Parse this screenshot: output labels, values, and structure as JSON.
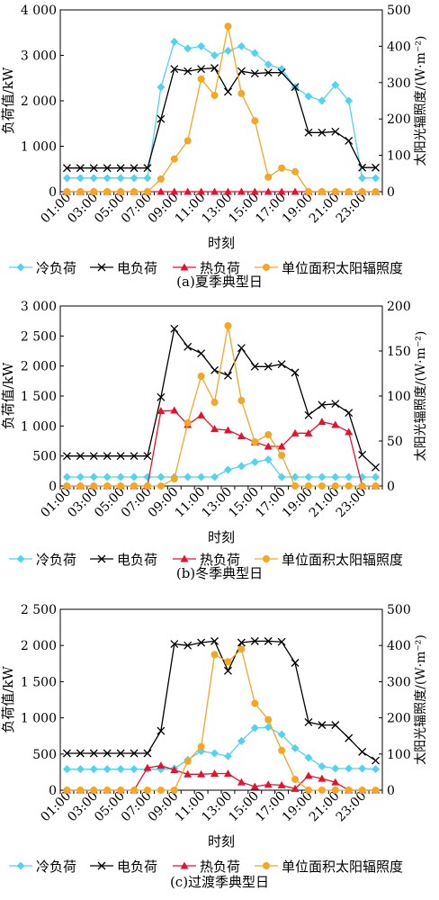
{
  "chart_data": [
    {
      "type": "line",
      "caption": "(a)夏季典型日",
      "xlabel": "时刻",
      "ylabel_left": "负荷值/kW",
      "ylabel_right": "太阳光辐照度/(W·m⁻²)",
      "x": [
        "01:00",
        "02:00",
        "03:00",
        "04:00",
        "05:00",
        "06:00",
        "07:00",
        "08:00",
        "09:00",
        "10:00",
        "11:00",
        "12:00",
        "13:00",
        "14:00",
        "15:00",
        "16:00",
        "17:00",
        "18:00",
        "19:00",
        "20:00",
        "21:00",
        "22:00",
        "23:00",
        "24:00"
      ],
      "xticks": [
        "01:00",
        "03:00",
        "05:00",
        "07:00",
        "09:00",
        "11:00",
        "13:00",
        "15:00",
        "17:00",
        "19:00",
        "21:00",
        "23:00"
      ],
      "ylim_left": [
        0,
        4000
      ],
      "yticks_left": [
        "0",
        "1 000",
        "2 000",
        "3 000",
        "4 000"
      ],
      "ylim_right": [
        0,
        500
      ],
      "yticks_right": [
        "0",
        "100",
        "200",
        "300",
        "400",
        "500"
      ],
      "series": [
        {
          "name": "冷负荷",
          "axis": "left",
          "color": "#4fd5f0",
          "marker": "diamond",
          "values": [
            300,
            300,
            300,
            300,
            300,
            300,
            300,
            2300,
            3300,
            3150,
            3200,
            3000,
            3100,
            3200,
            3050,
            2800,
            2700,
            2300,
            2100,
            2000,
            2350,
            2000,
            300,
            300
          ]
        },
        {
          "name": "电负荷",
          "axis": "left",
          "color": "#000000",
          "marker": "x",
          "values": [
            520,
            520,
            520,
            520,
            520,
            520,
            520,
            1600,
            2700,
            2650,
            2700,
            2720,
            2200,
            2650,
            2600,
            2620,
            2620,
            2300,
            1300,
            1300,
            1320,
            1120,
            530,
            530
          ]
        },
        {
          "name": "热负荷",
          "axis": "left",
          "color": "#e8112d",
          "marker": "triangle",
          "values": [
            0,
            0,
            0,
            0,
            0,
            0,
            0,
            0,
            0,
            0,
            0,
            0,
            0,
            0,
            0,
            0,
            0,
            0,
            0,
            0,
            0,
            0,
            0,
            0
          ]
        },
        {
          "name": "单位面积太阳辐照度",
          "axis": "right",
          "color": "#f5a623",
          "marker": "circle",
          "values": [
            0,
            0,
            0,
            0,
            0,
            0,
            0,
            35,
            90,
            140,
            310,
            265,
            455,
            270,
            195,
            40,
            65,
            55,
            0,
            0,
            0,
            0,
            0,
            0
          ]
        }
      ]
    },
    {
      "type": "line",
      "caption": "(b)冬季典型日",
      "xlabel": "时刻",
      "ylabel_left": "负荷值/kW",
      "ylabel_right": "太阳光辐照度/(W·m⁻²)",
      "x": [
        "01:00",
        "02:00",
        "03:00",
        "04:00",
        "05:00",
        "06:00",
        "07:00",
        "08:00",
        "09:00",
        "10:00",
        "11:00",
        "12:00",
        "13:00",
        "14:00",
        "15:00",
        "16:00",
        "17:00",
        "18:00",
        "19:00",
        "20:00",
        "21:00",
        "22:00",
        "23:00",
        "24:00"
      ],
      "xticks": [
        "01:00",
        "03:00",
        "05:00",
        "07:00",
        "09:00",
        "11:00",
        "13:00",
        "15:00",
        "17:00",
        "19:00",
        "21:00",
        "23:00"
      ],
      "ylim_left": [
        0,
        3000
      ],
      "yticks_left": [
        "0",
        "500",
        "1 000",
        "1 500",
        "2 000",
        "2 500",
        "3 000"
      ],
      "ylim_right": [
        0,
        200
      ],
      "yticks_right": [
        "0",
        "50",
        "100",
        "150",
        "200"
      ],
      "series": [
        {
          "name": "冷负荷",
          "axis": "left",
          "color": "#4fd5f0",
          "marker": "diamond",
          "values": [
            150,
            150,
            150,
            150,
            150,
            150,
            150,
            150,
            150,
            150,
            150,
            150,
            270,
            330,
            400,
            440,
            150,
            150,
            150,
            150,
            150,
            150,
            150,
            150
          ]
        },
        {
          "name": "电负荷",
          "axis": "left",
          "color": "#000000",
          "marker": "x",
          "values": [
            500,
            500,
            500,
            500,
            500,
            500,
            500,
            1480,
            2620,
            2320,
            2210,
            1930,
            1840,
            2300,
            1990,
            1990,
            2030,
            1890,
            1180,
            1350,
            1370,
            1220,
            520,
            310
          ]
        },
        {
          "name": "热负荷",
          "axis": "left",
          "color": "#e8112d",
          "marker": "triangle",
          "values": [
            0,
            0,
            0,
            0,
            0,
            0,
            0,
            1250,
            1260,
            1020,
            1180,
            950,
            930,
            830,
            730,
            660,
            660,
            880,
            880,
            1070,
            1020,
            900,
            0,
            0
          ]
        },
        {
          "name": "单位面积太阳辐照度",
          "axis": "right",
          "color": "#f5a623",
          "marker": "circle",
          "values": [
            0,
            0,
            0,
            0,
            0,
            0,
            0,
            0,
            8,
            70,
            122,
            93,
            178,
            95,
            49,
            57,
            34,
            0,
            0,
            0,
            0,
            0,
            0,
            0
          ]
        }
      ]
    },
    {
      "type": "line",
      "caption": "(c)过渡季典型日",
      "xlabel": "时刻",
      "ylabel_left": "负荷值/kW",
      "ylabel_right": "太阳光辐照度/(W·m⁻²)",
      "x": [
        "01:00",
        "02:00",
        "03:00",
        "04:00",
        "05:00",
        "06:00",
        "07:00",
        "08:00",
        "09:00",
        "10:00",
        "11:00",
        "12:00",
        "13:00",
        "14:00",
        "15:00",
        "16:00",
        "17:00",
        "18:00",
        "19:00",
        "20:00",
        "21:00",
        "22:00",
        "23:00",
        "24:00"
      ],
      "xticks": [
        "01:00",
        "03:00",
        "05:00",
        "07:00",
        "09:00",
        "11:00",
        "13:00",
        "15:00",
        "17:00",
        "19:00",
        "21:00",
        "23:00"
      ],
      "ylim_left": [
        0,
        2500
      ],
      "yticks_left": [
        "0",
        "500",
        "1 000",
        "1 500",
        "2 000",
        "2 500"
      ],
      "ylim_right": [
        0,
        500
      ],
      "yticks_right": [
        "0",
        "100",
        "200",
        "300",
        "400",
        "500"
      ],
      "series": [
        {
          "name": "冷负荷",
          "axis": "left",
          "color": "#4fd5f0",
          "marker": "diamond",
          "values": [
            290,
            290,
            290,
            290,
            290,
            290,
            290,
            290,
            300,
            420,
            540,
            510,
            470,
            680,
            860,
            870,
            770,
            580,
            450,
            330,
            300,
            300,
            300,
            290
          ]
        },
        {
          "name": "电负荷",
          "axis": "left",
          "color": "#000000",
          "marker": "x",
          "values": [
            510,
            510,
            510,
            510,
            510,
            510,
            510,
            820,
            2020,
            2000,
            2040,
            2060,
            1650,
            2040,
            2060,
            2060,
            2050,
            1760,
            940,
            900,
            900,
            720,
            530,
            410
          ]
        },
        {
          "name": "热负荷",
          "axis": "left",
          "color": "#e8112d",
          "marker": "triangle",
          "values": [
            0,
            0,
            0,
            0,
            0,
            0,
            310,
            340,
            280,
            220,
            220,
            230,
            230,
            110,
            50,
            80,
            70,
            20,
            200,
            160,
            110,
            0,
            0,
            0
          ]
        },
        {
          "name": "单位面积太阳辐照度",
          "axis": "right",
          "color": "#f5a623",
          "marker": "circle",
          "values": [
            0,
            0,
            0,
            0,
            0,
            0,
            0,
            0,
            0,
            80,
            120,
            375,
            355,
            390,
            240,
            195,
            110,
            30,
            0,
            0,
            0,
            0,
            0,
            0
          ]
        }
      ]
    }
  ]
}
